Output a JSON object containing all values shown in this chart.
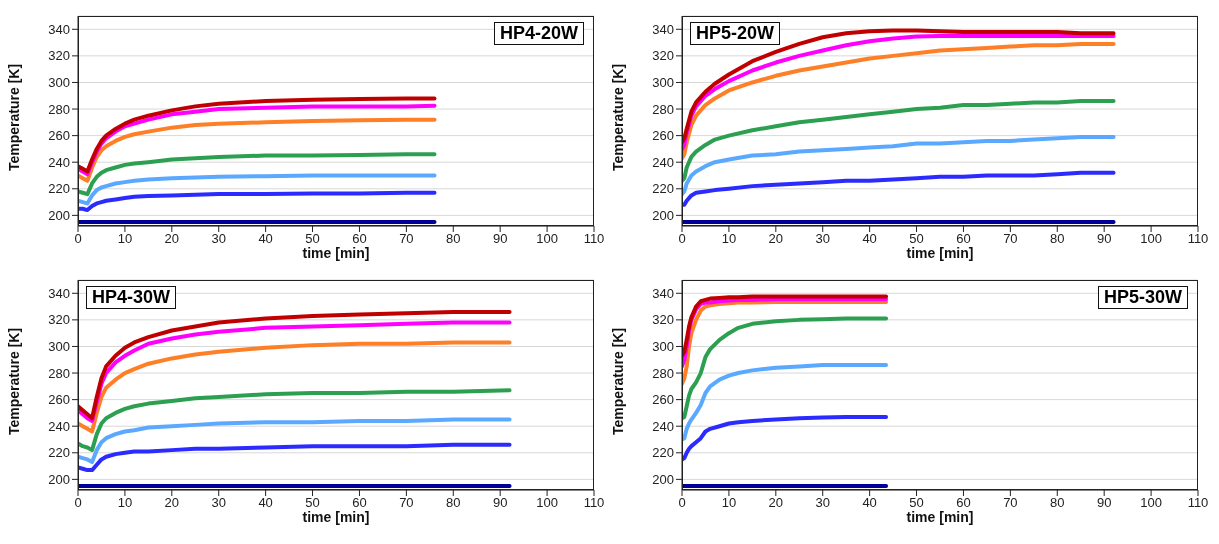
{
  "chart_data": [
    {
      "type": "line",
      "title": "HP4-20W",
      "xlabel": "time [min]",
      "ylabel": "Temperature [K]",
      "xlim": [
        0,
        110
      ],
      "xticks": [
        0,
        10,
        20,
        30,
        40,
        50,
        60,
        70,
        80,
        90,
        100,
        110
      ],
      "ylim": [
        192,
        350
      ],
      "yticks": [
        200,
        220,
        240,
        260,
        280,
        300,
        320,
        340
      ],
      "grid": "y",
      "x": [
        0,
        1,
        2,
        3,
        4,
        5,
        6,
        8,
        10,
        12,
        15,
        20,
        25,
        30,
        40,
        50,
        60,
        70,
        76
      ],
      "series": [
        {
          "color": "#c00000",
          "values": [
            237,
            235,
            233,
            242,
            250,
            256,
            260,
            265,
            269,
            272,
            275,
            279,
            282,
            284,
            286,
            287,
            287.5,
            288,
            288
          ]
        },
        {
          "color": "#ff00ff",
          "values": [
            235,
            233,
            231,
            240,
            248,
            254,
            258,
            263,
            267,
            269,
            272,
            276,
            278,
            280,
            281,
            282,
            282,
            282,
            282.5
          ]
        },
        {
          "color": "#ff7f27",
          "values": [
            230,
            228,
            226,
            236,
            244,
            249,
            252,
            256,
            259,
            261,
            263,
            266,
            268,
            269,
            270,
            271,
            271.5,
            272,
            272
          ]
        },
        {
          "color": "#2ca050",
          "values": [
            218,
            217,
            216,
            224,
            229,
            232,
            234,
            236,
            238,
            239,
            240,
            242,
            243,
            244,
            245,
            245,
            245.5,
            246,
            246
          ]
        },
        {
          "color": "#5aa9ff",
          "values": [
            211,
            210,
            209,
            215,
            219,
            221,
            222,
            224,
            225,
            226,
            227,
            228,
            228.5,
            229,
            229.5,
            230,
            230,
            230,
            230
          ]
        },
        {
          "color": "#2b2bff",
          "values": [
            205,
            205,
            204,
            207,
            209,
            210,
            211,
            212,
            213,
            214,
            214.5,
            215,
            215.5,
            216,
            216,
            216.5,
            216.5,
            217,
            217
          ]
        },
        {
          "color": "#000099",
          "values": [
            195,
            195,
            195,
            195,
            195,
            195,
            195,
            195,
            195,
            195,
            195,
            195,
            195,
            195,
            195,
            195,
            195,
            195,
            195
          ]
        }
      ]
    },
    {
      "type": "line",
      "title": "HP5-20W",
      "xlabel": "time [min]",
      "ylabel": "Temperature [K]",
      "xlim": [
        0,
        110
      ],
      "xticks": [
        0,
        10,
        20,
        30,
        40,
        50,
        60,
        70,
        80,
        90,
        100,
        110
      ],
      "ylim": [
        192,
        350
      ],
      "yticks": [
        200,
        220,
        240,
        260,
        280,
        300,
        320,
        340
      ],
      "grid": "y",
      "x": [
        0,
        0.5,
        1,
        2,
        3,
        5,
        7,
        10,
        15,
        20,
        25,
        30,
        35,
        40,
        45,
        50,
        55,
        60,
        65,
        70,
        75,
        80,
        85,
        92
      ],
      "series": [
        {
          "color": "#c00000",
          "values": [
            255,
            258,
            265,
            278,
            285,
            293,
            299,
            306,
            316,
            323,
            329,
            334,
            337,
            338.5,
            339,
            339,
            338.5,
            338,
            338,
            338,
            338,
            338,
            337,
            337
          ]
        },
        {
          "color": "#ff00ff",
          "values": [
            250,
            253,
            262,
            275,
            282,
            290,
            295,
            301,
            309,
            315,
            320,
            324,
            328,
            331,
            333,
            334.5,
            335,
            335,
            335,
            335,
            335,
            335,
            335,
            335
          ]
        },
        {
          "color": "#ff7f27",
          "values": [
            243,
            246,
            255,
            268,
            275,
            283,
            288,
            294,
            300,
            305,
            309,
            312,
            315,
            318,
            320,
            322,
            324,
            325,
            326,
            327,
            328,
            328,
            329,
            329
          ]
        },
        {
          "color": "#2ca050",
          "values": [
            226,
            228,
            236,
            244,
            248,
            253,
            257,
            260,
            264,
            267,
            270,
            272,
            274,
            276,
            278,
            280,
            281,
            283,
            283,
            284,
            285,
            285,
            286,
            286
          ]
        },
        {
          "color": "#5aa9ff",
          "values": [
            216,
            218,
            224,
            230,
            233,
            237,
            240,
            242,
            245,
            246,
            248,
            249,
            250,
            251,
            252,
            254,
            254,
            255,
            256,
            256,
            257,
            258,
            259,
            259
          ]
        },
        {
          "color": "#2b2bff",
          "values": [
            208,
            208,
            211,
            215,
            217,
            218,
            219,
            220,
            222,
            223,
            224,
            225,
            226,
            226,
            227,
            228,
            229,
            229,
            230,
            230,
            230,
            231,
            232,
            232
          ]
        },
        {
          "color": "#000099",
          "values": [
            195,
            195,
            195,
            195,
            195,
            195,
            195,
            195,
            195,
            195,
            195,
            195,
            195,
            195,
            195,
            195,
            195,
            195,
            195,
            195,
            195,
            195,
            195,
            195
          ]
        }
      ]
    },
    {
      "type": "line",
      "title": "HP4-30W",
      "xlabel": "time [min]",
      "ylabel": "Temperature [K]",
      "xlim": [
        0,
        110
      ],
      "xticks": [
        0,
        10,
        20,
        30,
        40,
        50,
        60,
        70,
        80,
        90,
        100,
        110
      ],
      "ylim": [
        192,
        350
      ],
      "yticks": [
        200,
        220,
        240,
        260,
        280,
        300,
        320,
        340
      ],
      "grid": "y",
      "x": [
        0,
        1,
        2,
        3,
        4,
        5,
        6,
        8,
        10,
        12,
        15,
        20,
        25,
        30,
        40,
        50,
        60,
        70,
        80,
        92
      ],
      "series": [
        {
          "color": "#c00000",
          "values": [
            255,
            252,
            249,
            246,
            262,
            276,
            285,
            293,
            299,
            303,
            307,
            312,
            315,
            318,
            321,
            323,
            324,
            325,
            326,
            326
          ]
        },
        {
          "color": "#ff00ff",
          "values": [
            252,
            249,
            246,
            244,
            258,
            272,
            280,
            288,
            293,
            297,
            302,
            306,
            309,
            311,
            314,
            315,
            316,
            317,
            318,
            318
          ]
        },
        {
          "color": "#ff7f27",
          "values": [
            242,
            240,
            238,
            236,
            250,
            262,
            269,
            275,
            280,
            283,
            287,
            291,
            294,
            296,
            299,
            301,
            302,
            302,
            303,
            303
          ]
        },
        {
          "color": "#2ca050",
          "values": [
            227,
            225,
            224,
            222,
            234,
            242,
            246,
            250,
            253,
            255,
            257,
            259,
            261,
            262,
            264,
            265,
            265,
            266,
            266,
            267
          ]
        },
        {
          "color": "#5aa9ff",
          "values": [
            217,
            216,
            215,
            213,
            222,
            228,
            231,
            234,
            236,
            237,
            239,
            240,
            241,
            242,
            243,
            243,
            244,
            244,
            245,
            245
          ]
        },
        {
          "color": "#2b2bff",
          "values": [
            209,
            208,
            207,
            207,
            211,
            215,
            217,
            219,
            220,
            221,
            221,
            222,
            223,
            223,
            224,
            225,
            225,
            225,
            226,
            226
          ]
        },
        {
          "color": "#000099",
          "values": [
            195,
            195,
            195,
            195,
            195,
            195,
            195,
            195,
            195,
            195,
            195,
            195,
            195,
            195,
            195,
            195,
            195,
            195,
            195,
            195
          ]
        }
      ]
    },
    {
      "type": "line",
      "title": "HP5-30W",
      "xlabel": "time [min]",
      "ylabel": "Temperature [K]",
      "xlim": [
        0,
        110
      ],
      "xticks": [
        0,
        10,
        20,
        30,
        40,
        50,
        60,
        70,
        80,
        90,
        100,
        110
      ],
      "ylim": [
        192,
        350
      ],
      "yticks": [
        200,
        220,
        240,
        260,
        280,
        300,
        320,
        340
      ],
      "grid": "y",
      "x": [
        0,
        0.5,
        1,
        1.5,
        2,
        3,
        4,
        5,
        6,
        8,
        10,
        12,
        15,
        20,
        25,
        30,
        35,
        43.5
      ],
      "series": [
        {
          "color": "#c00000",
          "values": [
            293,
            296,
            305,
            315,
            322,
            330,
            334,
            335,
            336,
            336.5,
            337,
            337,
            337.5,
            337.5,
            337.5,
            337.5,
            337.5,
            337.5
          ]
        },
        {
          "color": "#ff00ff",
          "values": [
            285,
            290,
            300,
            312,
            320,
            328,
            332,
            333,
            333,
            334,
            334.5,
            335,
            335,
            335.5,
            335.5,
            335.5,
            335.5,
            335.5
          ]
        },
        {
          "color": "#ff7f27",
          "values": [
            272,
            276,
            285,
            300,
            310,
            320,
            327,
            330,
            331,
            332,
            332.5,
            333,
            333,
            333.5,
            333.5,
            333.5,
            333.5,
            333.5
          ]
        },
        {
          "color": "#2ca050",
          "values": [
            246,
            247,
            255,
            263,
            268,
            273,
            280,
            292,
            298,
            305,
            310,
            314,
            317,
            319,
            320,
            320.5,
            321,
            321
          ]
        },
        {
          "color": "#5aa9ff",
          "values": [
            230,
            231,
            238,
            242,
            245,
            250,
            256,
            265,
            270,
            275,
            278,
            280,
            282,
            284,
            285,
            286,
            286,
            286
          ]
        },
        {
          "color": "#2b2bff",
          "values": [
            215,
            216,
            220,
            223,
            225,
            228,
            231,
            236,
            238,
            240,
            242,
            243,
            244,
            245,
            246,
            246.5,
            247,
            247
          ]
        },
        {
          "color": "#000099",
          "values": [
            195,
            195,
            195,
            195,
            195,
            195,
            195,
            195,
            195,
            195,
            195,
            195,
            195,
            195,
            195,
            195,
            195,
            195
          ]
        }
      ]
    }
  ]
}
